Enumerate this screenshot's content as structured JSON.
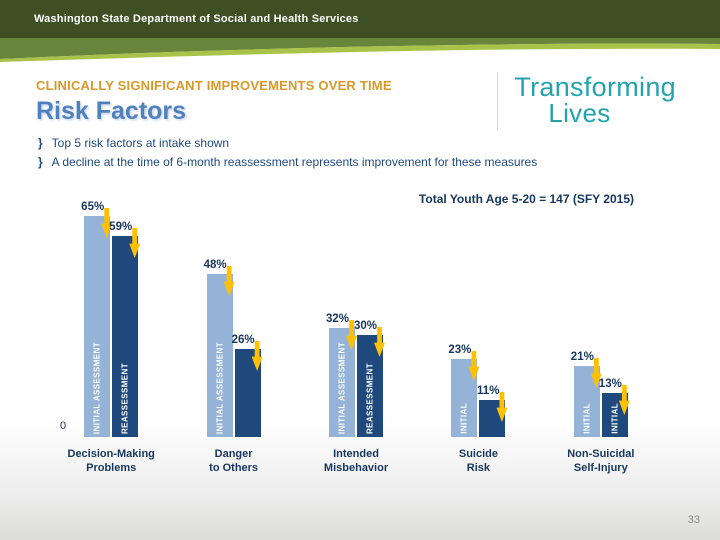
{
  "header": {
    "department": "Washington State Department of Social and Health Services"
  },
  "logo": {
    "line1": "Transforming",
    "line2": "Lives"
  },
  "slide": {
    "kicker": "CLINICALLY SIGNIFICANT IMPROVEMENTS OVER TIME",
    "title": "Risk Factors",
    "bullet_char": "}",
    "bullets": [
      "Top 5 risk factors at intake shown",
      "A decline at the time of 6-month reassessment represents improvement for these measures"
    ],
    "note": "Total Youth Age 5-20 = 147 (SFY 2015)",
    "page_number": "33"
  },
  "chart_data": {
    "type": "bar",
    "title": "Risk Factors — Clinically Significant Improvements Over Time",
    "categories": [
      "Decision-Making\nProblems",
      "Danger\nto Others",
      "Intended\nMisbehavior",
      "Suicide\nRisk",
      "Non-Suicidal\nSelf-Injury"
    ],
    "series": [
      {
        "name": "Initial Assessment",
        "values": [
          65,
          48,
          32,
          23,
          21
        ]
      },
      {
        "name": "Reassessment",
        "values": [
          59,
          26,
          30,
          11,
          13
        ]
      }
    ],
    "value_suffix": "%",
    "ylim": [
      0,
      70
    ],
    "baseline_label": "0",
    "legend_position": "labels-inside-bars",
    "bar_labels": [
      [
        "INITIAL ASSESSMENT",
        "REASSESSMENT"
      ],
      [
        "INITIAL ASSESSMENT",
        ""
      ],
      [
        "INITIAL ASSESSMENT",
        "REASSESSMENT"
      ],
      [
        "INITIAL",
        ""
      ],
      [
        "INITIAL",
        "INITIAL"
      ]
    ],
    "colors": {
      "initial": "#95B3D7",
      "reassessment": "#1F497D",
      "arrow": "#FFC000",
      "value_label": "#17375E",
      "kicker": "#D9992A",
      "title": "#4F81BD",
      "header_green": "#3D4F23",
      "swoosh_green": "#A9C24A",
      "logo_teal": "#23A3AE"
    }
  }
}
